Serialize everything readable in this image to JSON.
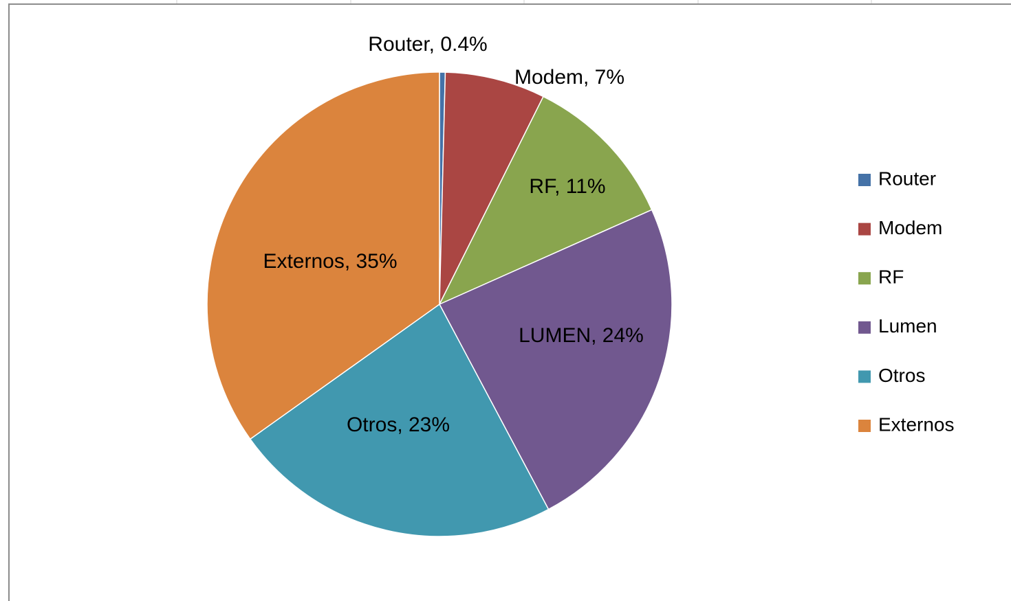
{
  "chart_data": {
    "type": "pie",
    "categories": [
      "Router",
      "Modem",
      "RF",
      "Lumen",
      "Otros",
      "Externos"
    ],
    "values": [
      0.4,
      7,
      11,
      24,
      23,
      35
    ],
    "value_labels": [
      "Router, 0.4%",
      "Modem, 7%",
      "RF, 11%",
      "LUMEN, 24%",
      "Otros, 23%",
      "Externos, 35%"
    ],
    "colors": [
      "#4572a7",
      "#aa4643",
      "#89a54e",
      "#71588f",
      "#4198af",
      "#db843d"
    ],
    "legend": "right"
  }
}
